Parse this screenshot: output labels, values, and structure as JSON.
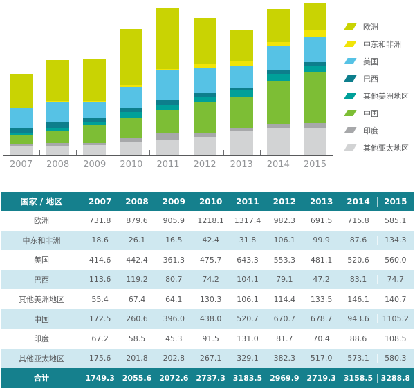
{
  "chart_data": {
    "type": "bar",
    "subtype": "stacked-vertical",
    "x": [
      "2007",
      "2008",
      "2009",
      "2010",
      "2011",
      "2012",
      "2013",
      "2014",
      "2015"
    ],
    "series": [
      {
        "name": "欧洲",
        "color": "#c9d303",
        "values": [
          731.8,
          879.6,
          905.9,
          1218.1,
          1317.4,
          982.3,
          691.5,
          715.8,
          585.1
        ]
      },
      {
        "name": "中东和非洲",
        "color": "#f1e408",
        "values": [
          18.6,
          26.1,
          16.5,
          42.4,
          31.8,
          106.1,
          99.9,
          87.6,
          134.3
        ]
      },
      {
        "name": "美国",
        "color": "#56c2e5",
        "values": [
          414.6,
          442.4,
          361.3,
          475.7,
          643.3,
          553.3,
          481.1,
          520.6,
          560.0
        ]
      },
      {
        "name": "巴西",
        "color": "#0d7e8c",
        "values": [
          113.6,
          119.2,
          80.7,
          74.2,
          104.1,
          79.1,
          47.2,
          83.1,
          74.7
        ]
      },
      {
        "name": "其他美洲地区",
        "color": "#00a099",
        "values": [
          55.4,
          67.4,
          64.1,
          130.3,
          106.1,
          114.4,
          133.5,
          146.1,
          140.7
        ]
      },
      {
        "name": "中国",
        "color": "#7dbe35",
        "values": [
          172.5,
          260.6,
          396.0,
          438.0,
          520.7,
          670.7,
          678.7,
          943.6,
          1105.2
        ]
      },
      {
        "name": "印度",
        "color": "#a7a8aa",
        "values": [
          67.2,
          58.5,
          45.3,
          91.5,
          131.0,
          81.7,
          70.4,
          88.6,
          108.5
        ]
      },
      {
        "name": "其他亚太地区",
        "color": "#d2d3d4",
        "values": [
          175.6,
          201.8,
          202.8,
          267.1,
          329.1,
          382.3,
          517.0,
          573.1,
          580.3
        ]
      }
    ],
    "stack_order_bottom_to_top": [
      "其他亚太地区",
      "印度",
      "中国",
      "其他美洲地区",
      "巴西",
      "美国",
      "中东和非洲",
      "欧洲"
    ],
    "ylim": [
      0,
      3300
    ],
    "grid": false,
    "legend_position": "right",
    "title": "",
    "xlabel": "",
    "ylabel": ""
  },
  "table": {
    "header": [
      "国家 / 地区",
      "2007",
      "2008",
      "2009",
      "2010",
      "2011",
      "2012",
      "2013",
      "2014",
      "2015"
    ],
    "rows": [
      {
        "label": "欧洲",
        "values": [
          731.8,
          879.6,
          905.9,
          1218.1,
          1317.4,
          982.3,
          691.5,
          715.8,
          585.1
        ]
      },
      {
        "label": "中东和非洲",
        "values": [
          18.6,
          26.1,
          16.5,
          42.4,
          31.8,
          106.1,
          99.9,
          87.6,
          134.3
        ]
      },
      {
        "label": "美国",
        "values": [
          414.6,
          442.4,
          361.3,
          475.7,
          643.3,
          553.3,
          481.1,
          520.6,
          560.0
        ]
      },
      {
        "label": "巴西",
        "values": [
          113.6,
          119.2,
          80.7,
          74.2,
          104.1,
          79.1,
          47.2,
          83.1,
          74.7
        ]
      },
      {
        "label": "其他美洲地区",
        "values": [
          55.4,
          67.4,
          64.1,
          130.3,
          106.1,
          114.4,
          133.5,
          146.1,
          140.7
        ]
      },
      {
        "label": "中国",
        "values": [
          172.5,
          260.6,
          396.0,
          438.0,
          520.7,
          670.7,
          678.7,
          943.6,
          1105.2
        ]
      },
      {
        "label": "印度",
        "values": [
          67.2,
          58.5,
          45.3,
          91.5,
          131.0,
          81.7,
          70.4,
          88.6,
          108.5
        ]
      },
      {
        "label": "其他亚太地区",
        "values": [
          175.6,
          201.8,
          202.8,
          267.1,
          329.1,
          382.3,
          517.0,
          573.1,
          580.3
        ]
      }
    ],
    "total_row": {
      "label": "合计",
      "values": [
        1749.3,
        2055.6,
        2072.6,
        2737.3,
        3183.5,
        2969.9,
        2719.3,
        3158.5,
        3288.8
      ]
    }
  },
  "colors": {
    "table_header_bg": "#15808d",
    "table_stripe_bg": "#cfe8f0",
    "axis_color": "#595a5c",
    "x_label_color": "#939598",
    "body_text_color": "#58595b"
  }
}
